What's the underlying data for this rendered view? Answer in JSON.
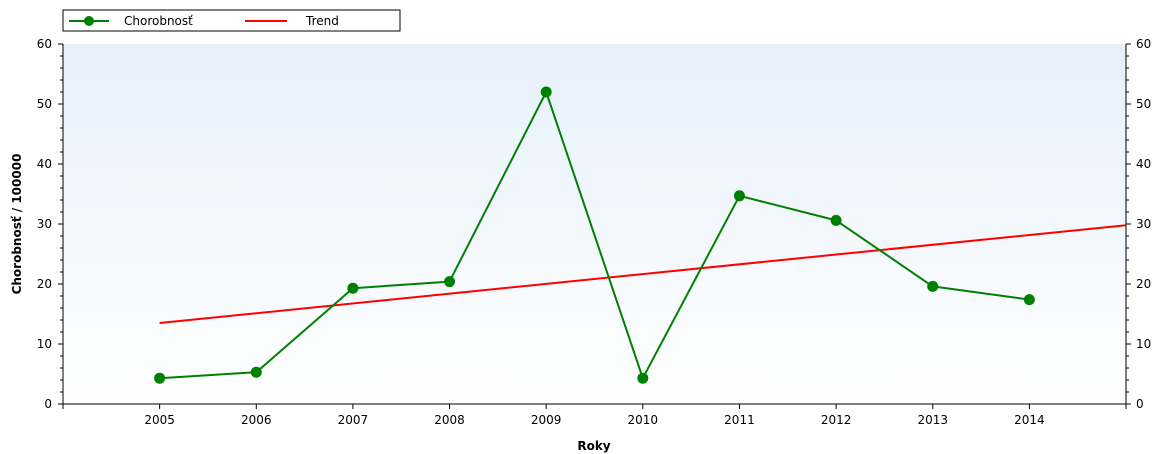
{
  "chart_data": {
    "type": "line",
    "xlabel": "Roky",
    "ylabel": "Chorobnosť / 100000",
    "x_axis": {
      "range": [
        2004,
        2015
      ]
    },
    "y_axis": {
      "range": [
        0,
        60
      ],
      "ticks": [
        0,
        10,
        20,
        30,
        40,
        50,
        60
      ],
      "mirrored_right": true
    },
    "categories": [
      "2005",
      "2006",
      "2007",
      "2008",
      "2009",
      "2010",
      "2011",
      "2012",
      "2013",
      "2014"
    ],
    "legend_position": "top-left",
    "grid": false,
    "series": [
      {
        "name": "Chorobnosť",
        "color": "#008000",
        "marker": "circle",
        "x": [
          2005,
          2006,
          2007,
          2008,
          2009,
          2010,
          2011,
          2012,
          2013,
          2014
        ],
        "values": [
          4.3,
          5.3,
          19.3,
          20.4,
          52.0,
          4.3,
          34.7,
          30.6,
          19.6,
          17.4
        ]
      },
      {
        "name": "Trend",
        "color": "#ff0000",
        "marker": "none",
        "x": [
          2005,
          2015
        ],
        "values": [
          13.5,
          29.8
        ]
      }
    ]
  }
}
